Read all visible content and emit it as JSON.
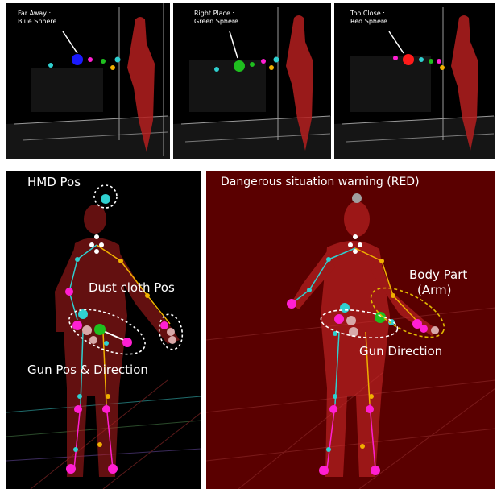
{
  "top_panels": [
    {
      "line1": "Far Away :",
      "line2": "Blue Sphere",
      "sphere_color": "#1a1aff"
    },
    {
      "line1": "Right Place :",
      "line2": "Green Sphere",
      "sphere_color": "#1fbf1f"
    },
    {
      "line1": "Too Close :",
      "line2": "Red Sphere",
      "sphere_color": "#ff1a1a"
    }
  ],
  "left_panel": {
    "hmd": "HMD Pos",
    "dust": "Dust cloth Pos",
    "gun": "Gun Pos & Direction"
  },
  "right_panel": {
    "warning": "Dangerous situation warning (RED)",
    "body_part_line1": "Body Part",
    "body_part_line2": "(Arm)",
    "gun_direction": "Gun Direction"
  },
  "colors": {
    "pointcloud": "#c81e1e",
    "joint_magenta": "#ff1fd2",
    "joint_cyan": "#2fd0d0",
    "joint_yellow": "#f0b000",
    "warning_bg": "#5a0000"
  }
}
